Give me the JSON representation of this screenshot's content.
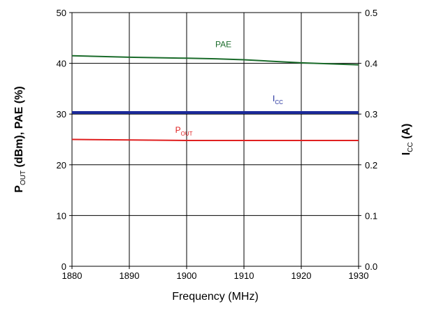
{
  "chart_data": {
    "type": "line",
    "title": "",
    "x": [
      1880,
      1890,
      1900,
      1905,
      1910,
      1920,
      1930
    ],
    "xlim": [
      1880,
      1930
    ],
    "xticks": [
      1880,
      1890,
      1900,
      1910,
      1920,
      1930
    ],
    "xlabel": "Frequency (MHz)",
    "ylim_left": [
      0,
      50
    ],
    "yticks_left": [
      0,
      10,
      20,
      30,
      40,
      50
    ],
    "ylabel_left": {
      "p": "P",
      "out_sub": "OUT",
      "rest": " (dBm), PAE (%)"
    },
    "ylim_right": [
      0,
      0.5
    ],
    "yticks_right": [
      "0.0",
      "0.1",
      "0.2",
      "0.3",
      "0.4",
      "0.5"
    ],
    "ylabel_right": {
      "i": "I",
      "cc_sub": "CC",
      "rest": " (A)"
    },
    "grid": true,
    "series": [
      {
        "name": "PAE",
        "label_main": "PAE",
        "label_sub": "",
        "axis": "left",
        "color": "#1a6b2a",
        "x": [
          1880,
          1890,
          1900,
          1905,
          1910,
          1920,
          1930
        ],
        "y": [
          41.5,
          41.2,
          41.0,
          40.9,
          40.7,
          40.1,
          39.7
        ],
        "label_at": [
          1905,
          43.2
        ]
      },
      {
        "name": "ICC",
        "label_main": "I",
        "label_sub": "CC",
        "axis": "right",
        "color": "#1c2a9a",
        "x": [
          1880,
          1890,
          1900,
          1910,
          1920,
          1930
        ],
        "y": [
          0.303,
          0.303,
          0.303,
          0.303,
          0.303,
          0.303
        ],
        "label_at": [
          1915,
          0.325
        ]
      },
      {
        "name": "POUT",
        "label_main": "P",
        "label_sub": "OUT",
        "axis": "left",
        "color": "#e02020",
        "x": [
          1880,
          1890,
          1900,
          1905,
          1910,
          1920,
          1930
        ],
        "y": [
          25.0,
          24.9,
          24.8,
          24.8,
          24.8,
          24.8,
          24.8
        ],
        "label_at": [
          1898,
          26.3
        ]
      }
    ]
  }
}
